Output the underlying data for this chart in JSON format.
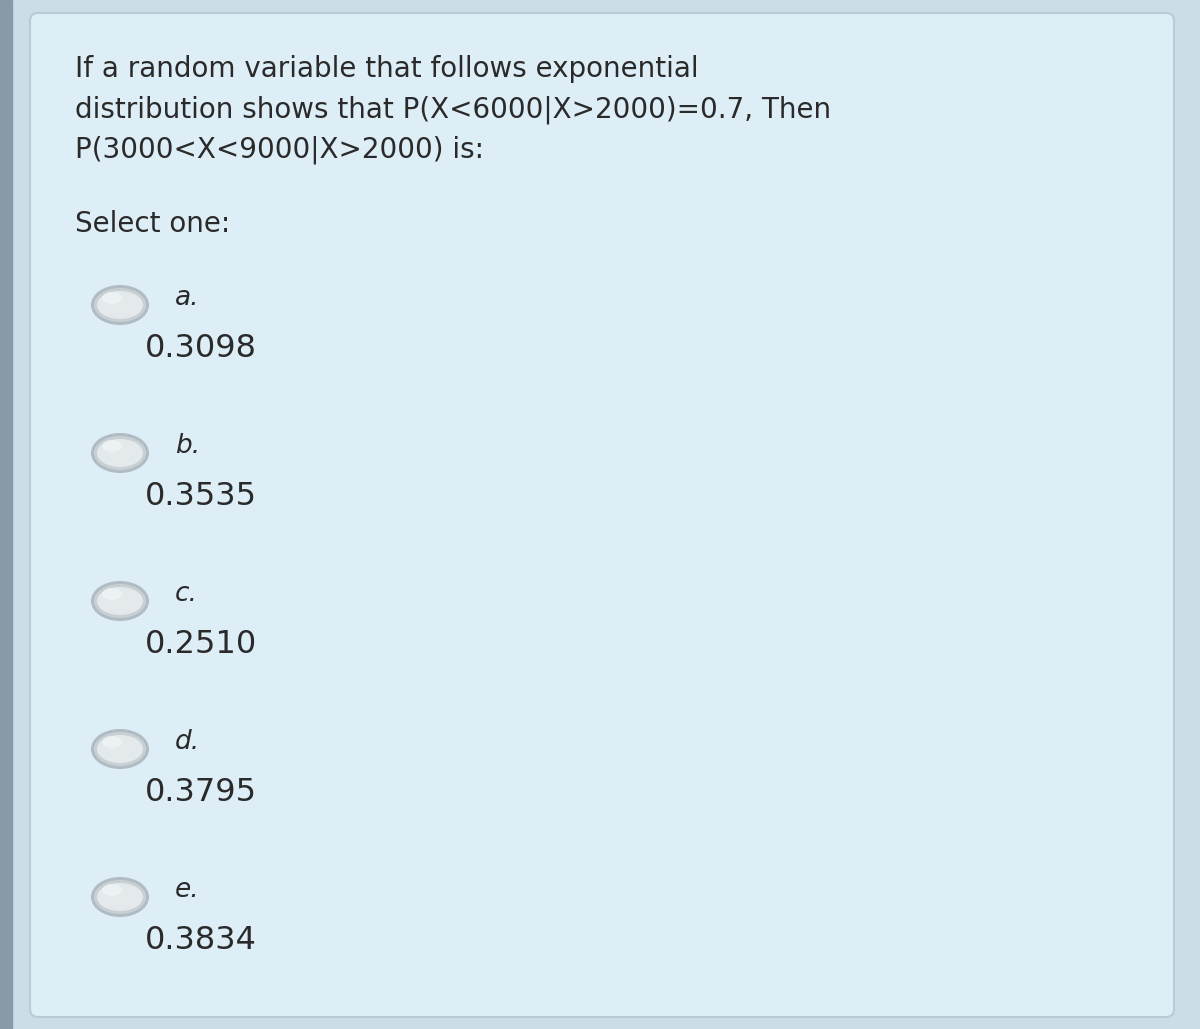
{
  "background_color": "#ccdde8",
  "card_color": "#ddeef7",
  "card_border_color": "#b8ccd8",
  "left_bar_color": "#8899a8",
  "text_color": "#2a2a2a",
  "question_text_line1": "If a random variable that follows exponential",
  "question_text_line2": "distribution shows that P(X<6000|X>2000)=0.7, Then",
  "question_text_line3": "P(3000<X<9000|X>2000) is:",
  "select_label": "Select one:",
  "options": [
    {
      "letter": "a.",
      "value": "0.3098"
    },
    {
      "letter": "b.",
      "value": "0.3535"
    },
    {
      "letter": "c.",
      "value": "0.2510"
    },
    {
      "letter": "d.",
      "value": "0.3795"
    },
    {
      "letter": "e.",
      "value": "0.3834"
    }
  ],
  "radio_outer_color": "#b0bcc4",
  "radio_mid_color": "#c8d0d4",
  "radio_inner_color": "#e4eaec",
  "radio_highlight": "#f0f4f6",
  "question_fontsize": 20,
  "select_fontsize": 20,
  "option_letter_fontsize": 19,
  "option_value_fontsize": 23,
  "font_family": "DejaVu Sans"
}
